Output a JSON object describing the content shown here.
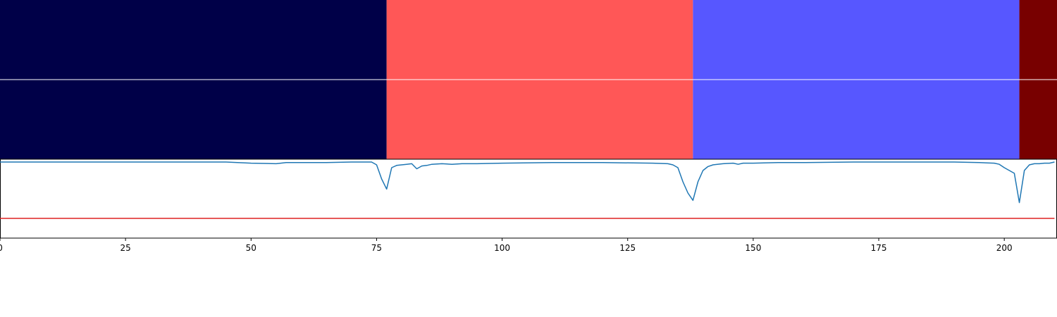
{
  "chart_data": {
    "type": "line",
    "title": "",
    "xlabel": "",
    "ylabel": "",
    "xlim": [
      0,
      210.5
    ],
    "x_ticks": [
      0,
      25,
      50,
      75,
      100,
      125,
      150,
      175,
      200
    ],
    "x_tick_labels": [
      "0",
      "25",
      "50",
      "75",
      "100",
      "125",
      "150",
      "175",
      "200"
    ],
    "segments": [
      {
        "start": 0,
        "end": 77,
        "color": "#000048"
      },
      {
        "start": 77,
        "end": 138,
        "color": "#ff5757"
      },
      {
        "start": 138,
        "end": 203,
        "color": "#5757ff"
      },
      {
        "start": 203,
        "end": 210.5,
        "color": "#780000"
      }
    ],
    "segment_rows": 2,
    "line_ylim": [
      -1.35,
      0.05
    ],
    "threshold": {
      "value": -1.0,
      "color": "#dd2222"
    },
    "series": [
      {
        "color": "#1f77b4",
        "points": [
          [
            0,
            0
          ],
          [
            10,
            0
          ],
          [
            20,
            0
          ],
          [
            30,
            0
          ],
          [
            40,
            0
          ],
          [
            45,
            0
          ],
          [
            50,
            -0.02
          ],
          [
            55,
            -0.03
          ],
          [
            57,
            -0.01
          ],
          [
            60,
            -0.01
          ],
          [
            65,
            -0.01
          ],
          [
            70,
            0
          ],
          [
            74,
            0
          ],
          [
            75,
            -0.05
          ],
          [
            76,
            -0.3
          ],
          [
            77,
            -0.48
          ],
          [
            78,
            -0.1
          ],
          [
            79,
            -0.06
          ],
          [
            80,
            -0.05
          ],
          [
            81,
            -0.04
          ],
          [
            82,
            -0.03
          ],
          [
            83,
            -0.12
          ],
          [
            84,
            -0.07
          ],
          [
            85,
            -0.06
          ],
          [
            86,
            -0.04
          ],
          [
            88,
            -0.03
          ],
          [
            90,
            -0.04
          ],
          [
            92,
            -0.03
          ],
          [
            95,
            -0.03
          ],
          [
            100,
            -0.02
          ],
          [
            110,
            -0.01
          ],
          [
            120,
            -0.01
          ],
          [
            130,
            -0.02
          ],
          [
            133,
            -0.03
          ],
          [
            134,
            -0.05
          ],
          [
            135,
            -0.1
          ],
          [
            136,
            -0.35
          ],
          [
            137,
            -0.55
          ],
          [
            138,
            -0.68
          ],
          [
            139,
            -0.35
          ],
          [
            140,
            -0.15
          ],
          [
            141,
            -0.08
          ],
          [
            142,
            -0.05
          ],
          [
            144,
            -0.03
          ],
          [
            146,
            -0.02
          ],
          [
            147,
            -0.04
          ],
          [
            148,
            -0.02
          ],
          [
            150,
            -0.02
          ],
          [
            155,
            -0.01
          ],
          [
            160,
            -0.01
          ],
          [
            170,
            0
          ],
          [
            180,
            0
          ],
          [
            190,
            0
          ],
          [
            195,
            -0.01
          ],
          [
            198,
            -0.02
          ],
          [
            199,
            -0.04
          ],
          [
            200,
            -0.1
          ],
          [
            201,
            -0.15
          ],
          [
            202,
            -0.2
          ],
          [
            203,
            -0.72
          ],
          [
            204,
            -0.15
          ],
          [
            205,
            -0.05
          ],
          [
            206,
            -0.03
          ],
          [
            207,
            -0.03
          ],
          [
            208,
            -0.02
          ],
          [
            209,
            -0.02
          ],
          [
            210,
            0
          ]
        ]
      }
    ]
  }
}
